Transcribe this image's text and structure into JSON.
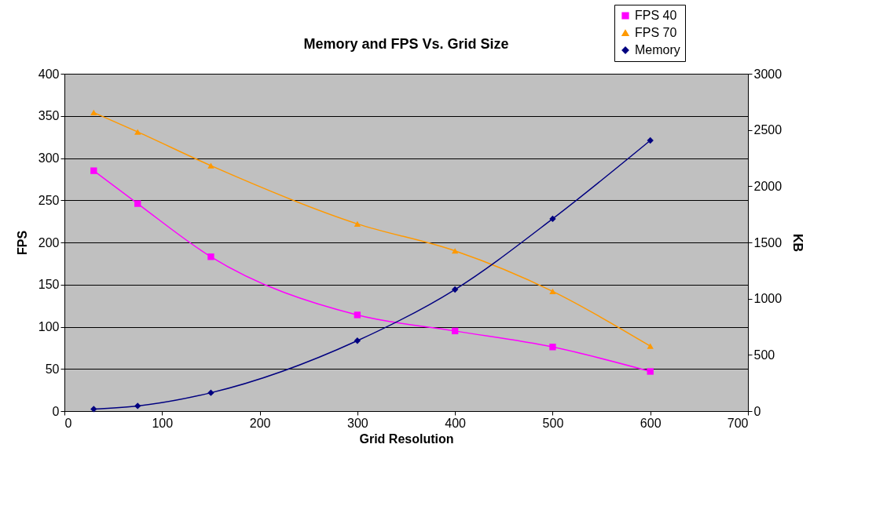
{
  "chart_data": {
    "type": "line",
    "title": "Memory and FPS Vs. Grid Size",
    "xlabel": "Grid Resolution",
    "ylabel": "FPS",
    "y2label": "KB",
    "x": [
      30,
      75,
      150,
      300,
      400,
      500,
      600
    ],
    "series": [
      {
        "name": "FPS 40",
        "color": "#ff00ff",
        "marker": "square",
        "values": [
          285,
          246,
          183,
          114,
          95,
          76,
          47
        ]
      },
      {
        "name": "FPS 70",
        "color": "#ff9900",
        "marker": "triangle",
        "values": [
          354,
          331,
          291,
          222,
          190,
          142,
          77
        ]
      },
      {
        "name": "Memory",
        "color": "#000080",
        "marker": "diamond",
        "axis": "y2",
        "values": [
          18,
          46,
          163,
          626,
          1081,
          1710,
          2407
        ]
      }
    ],
    "xlim": [
      0,
      700
    ],
    "xticks": [
      0,
      100,
      200,
      300,
      400,
      500,
      600,
      700
    ],
    "ylim": [
      0,
      400
    ],
    "yticks": [
      0,
      50,
      100,
      150,
      200,
      250,
      300,
      350,
      400
    ],
    "y2lim": [
      0,
      3000
    ],
    "y2ticks": [
      0,
      500,
      1000,
      1500,
      2000,
      2500,
      3000
    ],
    "grid": "y",
    "legend": "top right"
  }
}
